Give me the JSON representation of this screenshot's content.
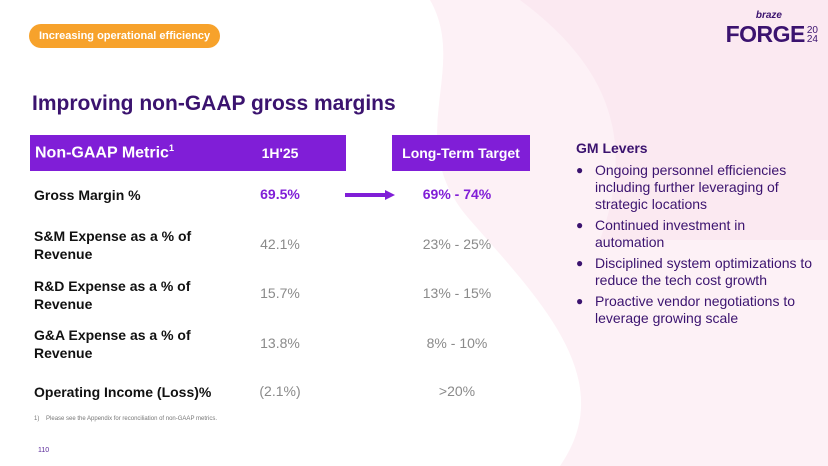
{
  "badge": "Increasing operational efficiency",
  "logo": {
    "brand": "braze",
    "event": "FORGE",
    "year_top": "20",
    "year_bottom": "24"
  },
  "title": "Improving non-GAAP gross margins",
  "table": {
    "headers": {
      "metric": "Non-GAAP Metric",
      "footnote_marker": "1",
      "period": "1H'25",
      "target": "Long-Term Target"
    },
    "rows": [
      {
        "label": "Gross Margin %",
        "value": "69.5%",
        "target": "69% - 74%",
        "highlight": true
      },
      {
        "label": "S&M Expense as a % of Revenue",
        "value": "42.1%",
        "target": "23% - 25%"
      },
      {
        "label": "R&D Expense as a % of Revenue",
        "value": "15.7%",
        "target": "13% - 15%"
      },
      {
        "label": "G&A Expense as a % of Revenue",
        "value": "13.8%",
        "target": "8% - 10%"
      },
      {
        "label": "Operating Income (Loss)%",
        "value": "(2.1%)",
        "target": ">20%"
      }
    ]
  },
  "levers": {
    "title": "GM Levers",
    "items": [
      "Ongoing personnel efficiencies including further leveraging of strategic locations",
      "Continued investment in automation",
      "Disciplined system optimizations to reduce the tech cost growth",
      "Proactive vendor negotiations to leverage growing scale"
    ]
  },
  "footnote": {
    "marker": "1)",
    "text": "Please see the Appendix for reconciliation of non-GAAP metrics."
  },
  "page_number": "110",
  "colors": {
    "accent": "#801ed7",
    "title": "#3b136f",
    "badge": "#f7a22b"
  }
}
